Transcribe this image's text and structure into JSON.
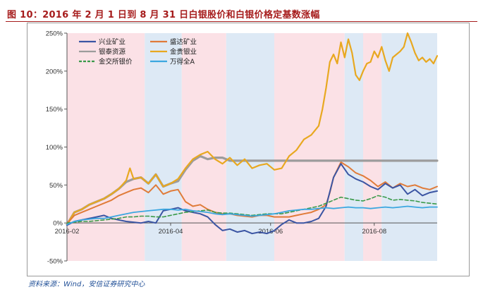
{
  "header": {
    "title": "图 10：2016 年 2 月 1 日到 8 月 31 日白银股价和白银价格定基数涨幅"
  },
  "footer": {
    "source": "资料来源：Wind，安信证券研究中心"
  },
  "colors": {
    "title": "#a61c1c",
    "source": "#1f4e96",
    "band_pink": "#fbe1e6",
    "band_blue": "#dde9f5"
  },
  "chart_data": {
    "type": "line",
    "title": "",
    "xlabel": "",
    "ylabel": "",
    "ylim": [
      -50,
      250
    ],
    "yticks": [
      "250%",
      "200%",
      "150%",
      "100%",
      "50%",
      "0%",
      "-50%"
    ],
    "ytick_values": [
      250,
      200,
      150,
      100,
      50,
      0,
      -50
    ],
    "xlim": [
      0,
      100
    ],
    "xticks": [
      {
        "label": "2016-02",
        "t": 0
      },
      {
        "label": "2016-04",
        "t": 28
      },
      {
        "label": "2016-06",
        "t": 55
      },
      {
        "label": "2016-08",
        "t": 83
      }
    ],
    "bands": [
      {
        "from": 0,
        "to": 21,
        "color": "pink"
      },
      {
        "from": 21,
        "to": 31,
        "color": "blue"
      },
      {
        "from": 31,
        "to": 43,
        "color": "pink"
      },
      {
        "from": 43,
        "to": 56,
        "color": "blue"
      },
      {
        "from": 56,
        "to": 75,
        "color": "pink"
      },
      {
        "from": 75,
        "to": 80,
        "color": "blue"
      },
      {
        "from": 80,
        "to": 85,
        "color": "pink"
      },
      {
        "from": 85,
        "to": 100,
        "color": "blue"
      }
    ],
    "legend": [
      {
        "name": "兴业矿业",
        "color": "#3b55a3",
        "dash": false
      },
      {
        "name": "盛达矿业",
        "color": "#e07b39",
        "dash": false
      },
      {
        "name": "银泰资源",
        "color": "#9c9c9c",
        "dash": false
      },
      {
        "name": "金贵银业",
        "color": "#e8a820",
        "dash": false
      },
      {
        "name": "金交所银价",
        "color": "#3a9a4a",
        "dash": true
      },
      {
        "name": "万得全A",
        "color": "#3ba7e0",
        "dash": false
      }
    ],
    "series": [
      {
        "name": "银泰资源",
        "color": "#9c9c9c",
        "width": 3.2,
        "dash": false,
        "x": [
          0,
          2,
          4,
          6,
          8,
          10,
          12,
          14,
          16,
          18,
          20,
          22,
          24,
          26,
          28,
          30,
          32,
          34,
          36,
          38,
          40,
          42,
          44,
          46,
          48,
          50,
          52,
          54,
          56,
          58,
          60,
          62,
          64,
          66,
          68,
          70,
          72,
          74,
          76,
          78,
          80,
          82,
          84,
          86,
          88,
          90,
          92,
          94,
          96,
          98,
          100
        ],
        "y": [
          -2,
          14,
          18,
          24,
          28,
          32,
          38,
          45,
          54,
          58,
          60,
          52,
          64,
          48,
          52,
          55,
          70,
          82,
          88,
          84,
          86,
          86,
          82,
          82,
          82,
          82,
          82,
          82,
          82,
          82,
          82,
          82,
          82,
          82,
          82,
          82,
          82,
          82,
          82,
          82,
          82,
          82,
          82,
          82,
          82,
          82,
          82,
          82,
          82,
          82,
          82
        ]
      },
      {
        "name": "金贵银业",
        "color": "#e8a820",
        "width": 2.2,
        "dash": false,
        "x": [
          0,
          2,
          4,
          6,
          8,
          10,
          12,
          14,
          16,
          17,
          18,
          20,
          22,
          24,
          26,
          28,
          30,
          32,
          34,
          36,
          38,
          40,
          42,
          44,
          46,
          48,
          50,
          52,
          54,
          56,
          58,
          60,
          62,
          64,
          66,
          68,
          69,
          70,
          71,
          72,
          73,
          74,
          75,
          76,
          77,
          78,
          79,
          80,
          81,
          82,
          83,
          84,
          85,
          86,
          87,
          88,
          89,
          90,
          91,
          92,
          93,
          94,
          95,
          96,
          97,
          98,
          99,
          100
        ],
        "y": [
          -2,
          14,
          18,
          24,
          28,
          32,
          38,
          45,
          56,
          72,
          58,
          60,
          52,
          64,
          48,
          52,
          58,
          72,
          84,
          90,
          94,
          84,
          78,
          86,
          76,
          84,
          72,
          76,
          78,
          70,
          72,
          88,
          96,
          110,
          116,
          128,
          150,
          178,
          212,
          222,
          210,
          238,
          218,
          242,
          224,
          195,
          188,
          200,
          210,
          212,
          226,
          218,
          232,
          214,
          200,
          218,
          222,
          226,
          232,
          250,
          238,
          224,
          214,
          218,
          212,
          216,
          210,
          220
        ]
      },
      {
        "name": "盛达矿业",
        "color": "#e07b39",
        "width": 2.0,
        "dash": false,
        "x": [
          0,
          2,
          4,
          6,
          8,
          10,
          12,
          14,
          16,
          18,
          20,
          22,
          24,
          26,
          28,
          30,
          32,
          34,
          36,
          38,
          40,
          42,
          44,
          46,
          48,
          50,
          52,
          54,
          56,
          58,
          60,
          62,
          64,
          66,
          68,
          70,
          71,
          72,
          74,
          76,
          78,
          80,
          82,
          84,
          86,
          88,
          90,
          92,
          94,
          96,
          98,
          100
        ],
        "y": [
          -1,
          10,
          14,
          18,
          22,
          26,
          30,
          36,
          40,
          44,
          46,
          40,
          50,
          38,
          42,
          44,
          28,
          22,
          24,
          18,
          14,
          12,
          12,
          10,
          9,
          8,
          10,
          10,
          8,
          8,
          8,
          10,
          12,
          14,
          18,
          24,
          40,
          60,
          80,
          74,
          66,
          62,
          56,
          48,
          54,
          46,
          52,
          48,
          50,
          46,
          44,
          48
        ]
      },
      {
        "name": "兴业矿业",
        "color": "#3b55a3",
        "width": 2.0,
        "dash": false,
        "x": [
          0,
          2,
          4,
          6,
          8,
          10,
          12,
          14,
          16,
          18,
          20,
          22,
          24,
          26,
          28,
          30,
          32,
          34,
          36,
          38,
          40,
          42,
          44,
          46,
          48,
          50,
          52,
          54,
          56,
          58,
          60,
          62,
          64,
          66,
          68,
          70,
          72,
          74,
          76,
          78,
          80,
          82,
          84,
          86,
          88,
          90,
          92,
          94,
          96,
          98,
          100
        ],
        "y": [
          -3,
          2,
          4,
          6,
          8,
          10,
          6,
          4,
          2,
          1,
          0,
          2,
          0,
          16,
          18,
          20,
          16,
          14,
          12,
          8,
          -2,
          -10,
          -8,
          -12,
          -10,
          -14,
          -12,
          -14,
          -10,
          -2,
          4,
          0,
          0,
          2,
          6,
          22,
          60,
          78,
          64,
          58,
          54,
          48,
          44,
          52,
          46,
          50,
          38,
          44,
          36,
          40,
          42
        ]
      },
      {
        "name": "金交所银价",
        "color": "#3a9a4a",
        "width": 1.6,
        "dash": true,
        "x": [
          0,
          2,
          4,
          6,
          8,
          10,
          12,
          14,
          16,
          18,
          20,
          22,
          24,
          26,
          28,
          30,
          32,
          34,
          36,
          38,
          40,
          42,
          44,
          46,
          48,
          50,
          52,
          54,
          56,
          58,
          60,
          62,
          64,
          66,
          68,
          70,
          72,
          74,
          76,
          78,
          80,
          82,
          84,
          86,
          88,
          90,
          92,
          94,
          96,
          98,
          100
        ],
        "y": [
          0,
          1,
          2,
          2,
          3,
          4,
          5,
          6,
          8,
          8,
          9,
          9,
          8,
          8,
          10,
          12,
          14,
          15,
          16,
          17,
          14,
          13,
          13,
          12,
          11,
          10,
          11,
          12,
          12,
          12,
          14,
          16,
          18,
          20,
          22,
          26,
          30,
          34,
          32,
          30,
          29,
          32,
          36,
          34,
          30,
          31,
          30,
          29,
          27,
          26,
          25
        ]
      },
      {
        "name": "万得全A",
        "color": "#3ba7e0",
        "width": 1.8,
        "dash": false,
        "x": [
          0,
          2,
          4,
          6,
          8,
          10,
          12,
          14,
          16,
          18,
          20,
          22,
          24,
          26,
          28,
          30,
          32,
          34,
          36,
          38,
          40,
          42,
          44,
          46,
          48,
          50,
          52,
          54,
          56,
          58,
          60,
          62,
          64,
          66,
          68,
          70,
          72,
          74,
          76,
          78,
          80,
          82,
          84,
          86,
          88,
          90,
          92,
          94,
          96,
          98,
          100
        ],
        "y": [
          -2,
          2,
          4,
          5,
          6,
          6,
          8,
          10,
          12,
          14,
          15,
          16,
          17,
          18,
          18,
          17,
          18,
          16,
          15,
          14,
          12,
          11,
          12,
          11,
          10,
          9,
          10,
          11,
          12,
          14,
          16,
          17,
          18,
          18,
          19,
          20,
          19,
          20,
          21,
          20,
          20,
          19,
          20,
          21,
          20,
          21,
          22,
          21,
          20,
          21,
          21
        ]
      }
    ]
  }
}
